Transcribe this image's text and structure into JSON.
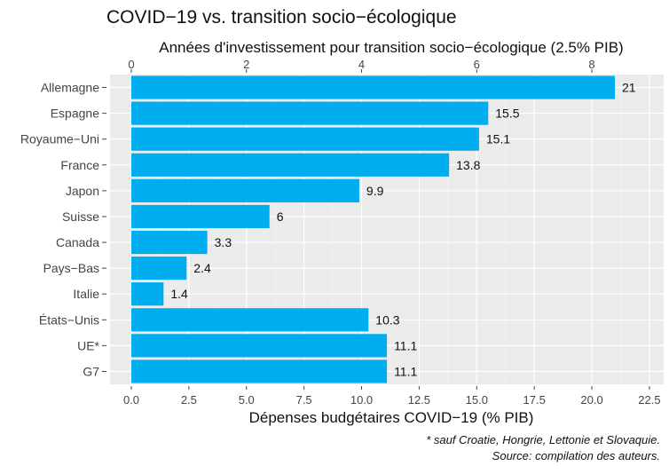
{
  "chart_data": {
    "type": "bar",
    "orientation": "horizontal",
    "title": "COVID−19 vs. transition socio−écologique",
    "xlabel": "Dépenses budgétaires COVID−19 (% PIB)",
    "x2label": "Années d'investissement pour transition socio−écologique (2.5% PIB)",
    "categories": [
      "Allemagne",
      "Espagne",
      "Royaume−Uni",
      "France",
      "Japon",
      "Suisse",
      "Canada",
      "Pays−Bas",
      "Italie",
      "États−Unis",
      "UE*",
      "G7"
    ],
    "values": [
      21,
      15.5,
      15.1,
      13.8,
      9.9,
      6,
      3.3,
      2.4,
      1.4,
      10.3,
      11.1,
      11.1
    ],
    "value_labels": [
      "21",
      "15.5",
      "15.1",
      "13.8",
      "9.9",
      "6",
      "3.3",
      "2.4",
      "1.4",
      "10.3",
      "11.1",
      "11.1"
    ],
    "xlim": [
      0,
      22.5
    ],
    "xticks": [
      0,
      2.5,
      5,
      7.5,
      10,
      12.5,
      15,
      17.5,
      20,
      22.5
    ],
    "xtick_labels": [
      "0.0",
      "2.5",
      "5.0",
      "7.5",
      "10.0",
      "12.5",
      "15.0",
      "17.5",
      "20.0",
      "22.5"
    ],
    "x2_divisor": 2.5,
    "x2ticks": [
      0,
      2,
      4,
      6,
      8
    ],
    "x2tick_labels": [
      "0",
      "2",
      "4",
      "6",
      "8"
    ],
    "grid": true,
    "colors": {
      "bar": "#00adef",
      "panel": "#ebebeb",
      "grid_major": "#ffffff",
      "grid_minor": "#f4f4f4"
    },
    "notes": [
      "* sauf Croatie, Hongrie, Lettonie et Slovaquie.",
      "Source: compilation des auteurs."
    ]
  }
}
